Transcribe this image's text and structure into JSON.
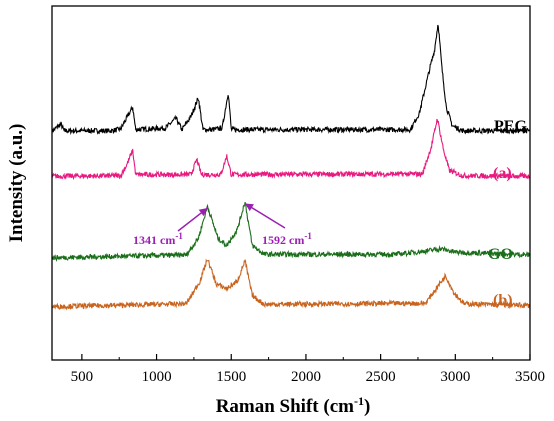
{
  "chart_data": {
    "type": "line",
    "xlabel": "Raman Shift (cm",
    "xlabel_sup": "-1",
    "xlabel_close": ")",
    "ylabel": "Intensity (a.u.)",
    "xlim": [
      300,
      3500
    ],
    "xticks": [
      500,
      1000,
      1500,
      2000,
      2500,
      3000,
      3500
    ],
    "y_tick_labels_shown": false,
    "grid": false,
    "series": [
      {
        "name": "PEG",
        "color": "#000000",
        "offset": 4.05,
        "points": [
          [
            300,
            0.02
          ],
          [
            360,
            0.15
          ],
          [
            380,
            0.03
          ],
          [
            700,
            0.03
          ],
          [
            760,
            0.06
          ],
          [
            840,
            0.45
          ],
          [
            860,
            0.05
          ],
          [
            1060,
            0.08
          ],
          [
            1130,
            0.25
          ],
          [
            1170,
            0.05
          ],
          [
            1230,
            0.28
          ],
          [
            1280,
            0.62
          ],
          [
            1310,
            0.05
          ],
          [
            1380,
            0.05
          ],
          [
            1440,
            0.08
          ],
          [
            1480,
            0.72
          ],
          [
            1500,
            0.05
          ],
          [
            2700,
            0.05
          ],
          [
            2760,
            0.35
          ],
          [
            2830,
            1.15
          ],
          [
            2860,
            1.45
          ],
          [
            2885,
            1.95
          ],
          [
            2910,
            1.15
          ],
          [
            2940,
            0.45
          ],
          [
            2980,
            0.12
          ],
          [
            3050,
            0.03
          ],
          [
            3500,
            0.03
          ]
        ]
      },
      {
        "name": "(a)",
        "color": "#e8197f",
        "offset": 3.25,
        "points": [
          [
            300,
            0.02
          ],
          [
            760,
            0.03
          ],
          [
            800,
            0.22
          ],
          [
            840,
            0.48
          ],
          [
            860,
            0.05
          ],
          [
            1230,
            0.05
          ],
          [
            1270,
            0.32
          ],
          [
            1300,
            0.05
          ],
          [
            1430,
            0.05
          ],
          [
            1470,
            0.38
          ],
          [
            1500,
            0.05
          ],
          [
            2780,
            0.06
          ],
          [
            2840,
            0.55
          ],
          [
            2880,
            1.05
          ],
          [
            2920,
            0.5
          ],
          [
            2960,
            0.12
          ],
          [
            3050,
            0.03
          ],
          [
            3500,
            0.02
          ]
        ]
      },
      {
        "name": "GO",
        "color": "#1a6e1a",
        "offset": 1.82,
        "points": [
          [
            300,
            0
          ],
          [
            1200,
            0.05
          ],
          [
            1280,
            0.35
          ],
          [
            1341,
            0.92
          ],
          [
            1410,
            0.35
          ],
          [
            1470,
            0.22
          ],
          [
            1540,
            0.5
          ],
          [
            1592,
            1.0
          ],
          [
            1640,
            0.22
          ],
          [
            1720,
            0.06
          ],
          [
            2600,
            0.06
          ],
          [
            2800,
            0.12
          ],
          [
            2900,
            0.16
          ],
          [
            3000,
            0.1
          ],
          [
            3500,
            0.05
          ]
        ]
      },
      {
        "name": "(b)",
        "color": "#c8641e",
        "offset": 0.95,
        "points": [
          [
            300,
            0
          ],
          [
            1200,
            0.05
          ],
          [
            1290,
            0.45
          ],
          [
            1341,
            0.85
          ],
          [
            1400,
            0.4
          ],
          [
            1470,
            0.32
          ],
          [
            1540,
            0.45
          ],
          [
            1592,
            0.82
          ],
          [
            1640,
            0.2
          ],
          [
            1720,
            0.04
          ],
          [
            2800,
            0.06
          ],
          [
            2880,
            0.35
          ],
          [
            2935,
            0.55
          ],
          [
            2990,
            0.25
          ],
          [
            3060,
            0.05
          ],
          [
            3500,
            0.02
          ]
        ]
      }
    ],
    "annotations": [
      {
        "label": "1341 cm",
        "sup": "-1",
        "color": "#9b1fb3",
        "x": 1341,
        "series": "GO"
      },
      {
        "label": "1592 cm",
        "sup": "-1",
        "color": "#9b1fb3",
        "x": 1592,
        "series": "GO"
      }
    ]
  }
}
